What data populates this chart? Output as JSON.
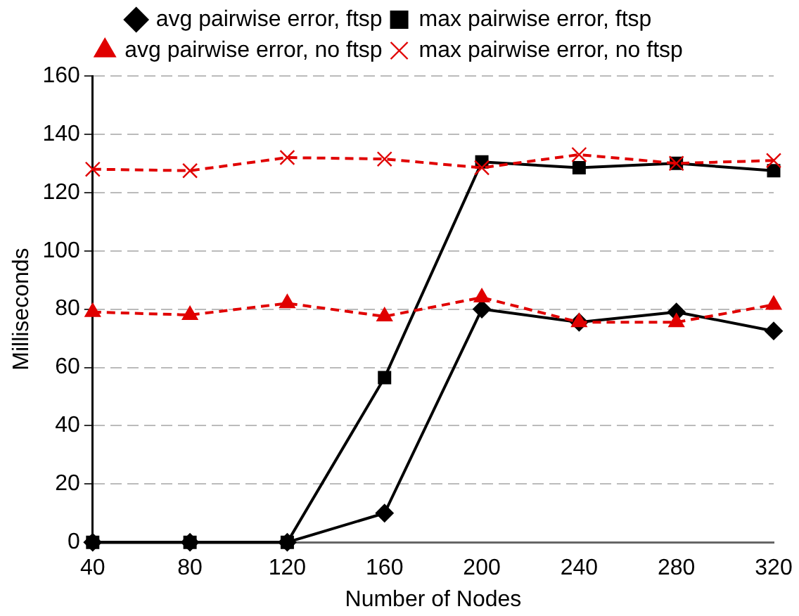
{
  "chart_data": {
    "type": "line",
    "xlabel": "Number of Nodes",
    "ylabel": "Milliseconds",
    "x": [
      40,
      80,
      120,
      160,
      200,
      240,
      280,
      320
    ],
    "xlim": [
      40,
      320
    ],
    "xticks": [
      40,
      80,
      120,
      160,
      200,
      240,
      280,
      320
    ],
    "ylim": [
      0,
      160
    ],
    "yticks": [
      0,
      20,
      40,
      60,
      80,
      100,
      120,
      140,
      160
    ],
    "grid": "y",
    "legend": "top",
    "series": [
      {
        "name": "avg pairwise error, ftsp",
        "color": "#000000",
        "marker": "diamond",
        "line_style": "solid",
        "values": [
          0,
          0,
          0,
          10,
          80,
          75.5,
          79,
          72.5
        ]
      },
      {
        "name": "max pairwise error, ftsp",
        "color": "#000000",
        "marker": "square",
        "line_style": "solid",
        "values": [
          0,
          0,
          0,
          56.5,
          130.5,
          128.5,
          130,
          127.5
        ]
      },
      {
        "name": "avg pairwise error, no ftsp",
        "color": "#e00000",
        "marker": "triangle",
        "line_style": "dashed",
        "values": [
          79,
          78,
          82,
          77.5,
          84,
          75.5,
          75.5,
          81.5
        ]
      },
      {
        "name": "max pairwise error, no ftsp",
        "color": "#e00000",
        "marker": "cross",
        "line_style": "dashed",
        "values": [
          128,
          127.5,
          132,
          131.5,
          128.5,
          133,
          130,
          131
        ]
      }
    ]
  }
}
